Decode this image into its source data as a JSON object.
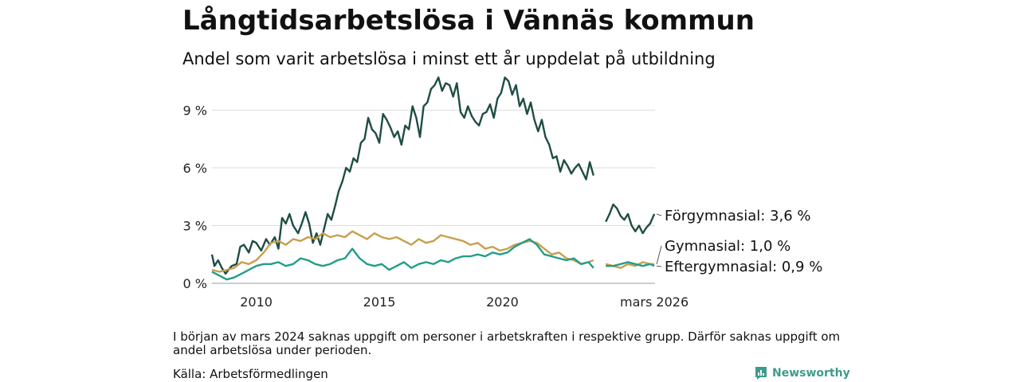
{
  "chart_data": {
    "type": "line",
    "title": "Långtidsarbetslösa i Vännäs kommun",
    "subtitle": "Andel som varit arbetslösa i minst ett år uppdelat på utbildning",
    "ylim": [
      0,
      11
    ],
    "yticks": [
      0,
      3,
      6,
      9
    ],
    "ytick_labels": [
      "0 %",
      "3 %",
      "6 %",
      "9 %"
    ],
    "xlim": [
      2008.2,
      2026.2
    ],
    "xticks": [
      2010,
      2015,
      2020,
      2026.17
    ],
    "xtick_labels": [
      "2010",
      "2015",
      "2020",
      "mars 2026"
    ],
    "grid": true,
    "gap": [
      2023.75,
      2024.2
    ],
    "series": [
      {
        "name": "Förgymnasial",
        "label": "Förgymnasial: 3,6 %",
        "color": "#1f4d45",
        "x": [
          2008.2,
          2008.3,
          2008.45,
          2008.6,
          2008.75,
          2009.0,
          2009.2,
          2009.35,
          2009.5,
          2009.7,
          2009.85,
          2010.0,
          2010.2,
          2010.4,
          2010.55,
          2010.75,
          2010.9,
          2011.05,
          2011.2,
          2011.35,
          2011.5,
          2011.7,
          2011.85,
          2012.0,
          2012.15,
          2012.3,
          2012.45,
          2012.6,
          2012.75,
          2012.9,
          2013.05,
          2013.2,
          2013.35,
          2013.5,
          2013.65,
          2013.8,
          2013.95,
          2014.1,
          2014.25,
          2014.4,
          2014.55,
          2014.7,
          2014.85,
          2015.0,
          2015.15,
          2015.3,
          2015.45,
          2015.6,
          2015.75,
          2015.9,
          2016.05,
          2016.2,
          2016.35,
          2016.5,
          2016.65,
          2016.8,
          2016.95,
          2017.1,
          2017.25,
          2017.4,
          2017.55,
          2017.7,
          2017.85,
          2018.0,
          2018.15,
          2018.3,
          2018.45,
          2018.6,
          2018.75,
          2018.9,
          2019.05,
          2019.2,
          2019.35,
          2019.5,
          2019.65,
          2019.8,
          2019.95,
          2020.1,
          2020.25,
          2020.4,
          2020.55,
          2020.7,
          2020.85,
          2021.0,
          2021.15,
          2021.3,
          2021.45,
          2021.6,
          2021.75,
          2021.9,
          2022.05,
          2022.2,
          2022.35,
          2022.5,
          2022.65,
          2022.8,
          2022.95,
          2023.1,
          2023.25,
          2023.4,
          2023.55,
          2023.7,
          2024.2,
          2024.35,
          2024.5,
          2024.65,
          2024.8,
          2024.95,
          2025.1,
          2025.25,
          2025.4,
          2025.55,
          2025.7,
          2025.85,
          2026.0,
          2026.17
        ],
        "values": [
          1.5,
          0.9,
          1.2,
          0.8,
          0.5,
          0.9,
          1.0,
          1.9,
          2.0,
          1.6,
          2.2,
          2.1,
          1.7,
          2.3,
          2.0,
          2.4,
          1.8,
          3.4,
          3.1,
          3.6,
          3.0,
          2.6,
          3.1,
          3.7,
          3.1,
          2.1,
          2.6,
          2.0,
          2.8,
          3.6,
          3.3,
          4.0,
          4.8,
          5.3,
          6.0,
          5.8,
          6.5,
          6.3,
          7.3,
          7.5,
          8.6,
          8.0,
          7.8,
          7.3,
          8.8,
          8.5,
          8.1,
          7.6,
          7.9,
          7.2,
          8.2,
          8.0,
          9.2,
          8.6,
          7.6,
          9.2,
          9.4,
          10.1,
          10.3,
          10.7,
          10.0,
          10.4,
          10.3,
          9.7,
          10.4,
          8.9,
          8.6,
          9.2,
          8.7,
          8.4,
          8.2,
          8.8,
          8.9,
          9.3,
          8.6,
          9.6,
          9.9,
          10.7,
          10.5,
          9.8,
          10.3,
          9.2,
          9.6,
          8.8,
          9.4,
          8.5,
          7.9,
          8.5,
          7.6,
          7.2,
          6.5,
          6.6,
          5.8,
          6.4,
          6.1,
          5.7,
          6.0,
          6.2,
          5.8,
          5.4,
          6.3,
          5.6,
          3.2,
          3.6,
          4.1,
          3.9,
          3.5,
          3.3,
          3.6,
          3.0,
          2.7,
          3.0,
          2.6,
          2.9,
          3.1,
          3.6
        ]
      },
      {
        "name": "Gymnasial",
        "label": "Gymnasial: 1,0 %",
        "color": "#c89f4e",
        "x": [
          2008.2,
          2008.5,
          2008.8,
          2009.1,
          2009.4,
          2009.7,
          2010.0,
          2010.3,
          2010.6,
          2010.9,
          2011.2,
          2011.5,
          2011.8,
          2012.1,
          2012.4,
          2012.7,
          2013.0,
          2013.3,
          2013.6,
          2013.9,
          2014.2,
          2014.5,
          2014.8,
          2015.1,
          2015.4,
          2015.7,
          2016.0,
          2016.3,
          2016.6,
          2016.9,
          2017.2,
          2017.5,
          2017.8,
          2018.1,
          2018.4,
          2018.7,
          2019.0,
          2019.3,
          2019.6,
          2019.9,
          2020.2,
          2020.5,
          2020.8,
          2021.1,
          2021.4,
          2021.7,
          2022.0,
          2022.3,
          2022.6,
          2022.9,
          2023.2,
          2023.5,
          2023.7,
          2024.2,
          2024.5,
          2024.8,
          2025.1,
          2025.4,
          2025.7,
          2026.0,
          2026.17
        ],
        "values": [
          0.7,
          0.6,
          0.7,
          0.8,
          1.1,
          1.0,
          1.2,
          1.6,
          2.1,
          2.2,
          2.0,
          2.3,
          2.2,
          2.4,
          2.3,
          2.6,
          2.4,
          2.5,
          2.4,
          2.7,
          2.5,
          2.3,
          2.6,
          2.4,
          2.3,
          2.4,
          2.2,
          2.0,
          2.3,
          2.1,
          2.2,
          2.5,
          2.4,
          2.3,
          2.2,
          2.0,
          2.1,
          1.8,
          1.9,
          1.7,
          1.8,
          2.0,
          2.1,
          2.2,
          2.1,
          1.8,
          1.5,
          1.6,
          1.3,
          1.2,
          1.0,
          1.1,
          1.2,
          1.0,
          0.9,
          0.8,
          1.0,
          0.9,
          1.1,
          1.0,
          1.0
        ]
      },
      {
        "name": "Eftergymnasial",
        "label": "Eftergymnasial: 0,9 %",
        "color": "#239d89",
        "x": [
          2008.2,
          2008.5,
          2008.8,
          2009.1,
          2009.4,
          2009.7,
          2010.0,
          2010.3,
          2010.6,
          2010.9,
          2011.2,
          2011.5,
          2011.8,
          2012.1,
          2012.4,
          2012.7,
          2013.0,
          2013.3,
          2013.6,
          2013.9,
          2014.2,
          2014.5,
          2014.8,
          2015.1,
          2015.4,
          2015.7,
          2016.0,
          2016.3,
          2016.6,
          2016.9,
          2017.2,
          2017.5,
          2017.8,
          2018.1,
          2018.4,
          2018.7,
          2019.0,
          2019.3,
          2019.6,
          2019.9,
          2020.2,
          2020.5,
          2020.8,
          2021.1,
          2021.4,
          2021.7,
          2022.0,
          2022.3,
          2022.6,
          2022.9,
          2023.2,
          2023.5,
          2023.7,
          2024.2,
          2024.5,
          2024.8,
          2025.1,
          2025.4,
          2025.7,
          2026.0,
          2026.17
        ],
        "values": [
          0.6,
          0.4,
          0.2,
          0.3,
          0.5,
          0.7,
          0.9,
          1.0,
          1.0,
          1.1,
          0.9,
          1.0,
          1.3,
          1.2,
          1.0,
          0.9,
          1.0,
          1.2,
          1.3,
          1.8,
          1.3,
          1.0,
          0.9,
          1.0,
          0.7,
          0.9,
          1.1,
          0.8,
          1.0,
          1.1,
          1.0,
          1.2,
          1.1,
          1.3,
          1.4,
          1.4,
          1.5,
          1.4,
          1.6,
          1.5,
          1.6,
          1.9,
          2.1,
          2.3,
          2.0,
          1.5,
          1.4,
          1.3,
          1.2,
          1.3,
          1.0,
          1.1,
          0.8,
          0.9,
          0.9,
          1.0,
          1.1,
          1.0,
          0.9,
          1.0,
          0.9
        ]
      }
    ]
  },
  "footer": {
    "note": "I början av mars 2024 saknas uppgift om personer i arbetskraften i respektive grupp. Därför saknas uppgift om andel arbetslösa under perioden.",
    "source": "Källa: Arbetsförmedlingen",
    "brand": "Newsworthy",
    "brand_color": "#3f9a8c"
  }
}
